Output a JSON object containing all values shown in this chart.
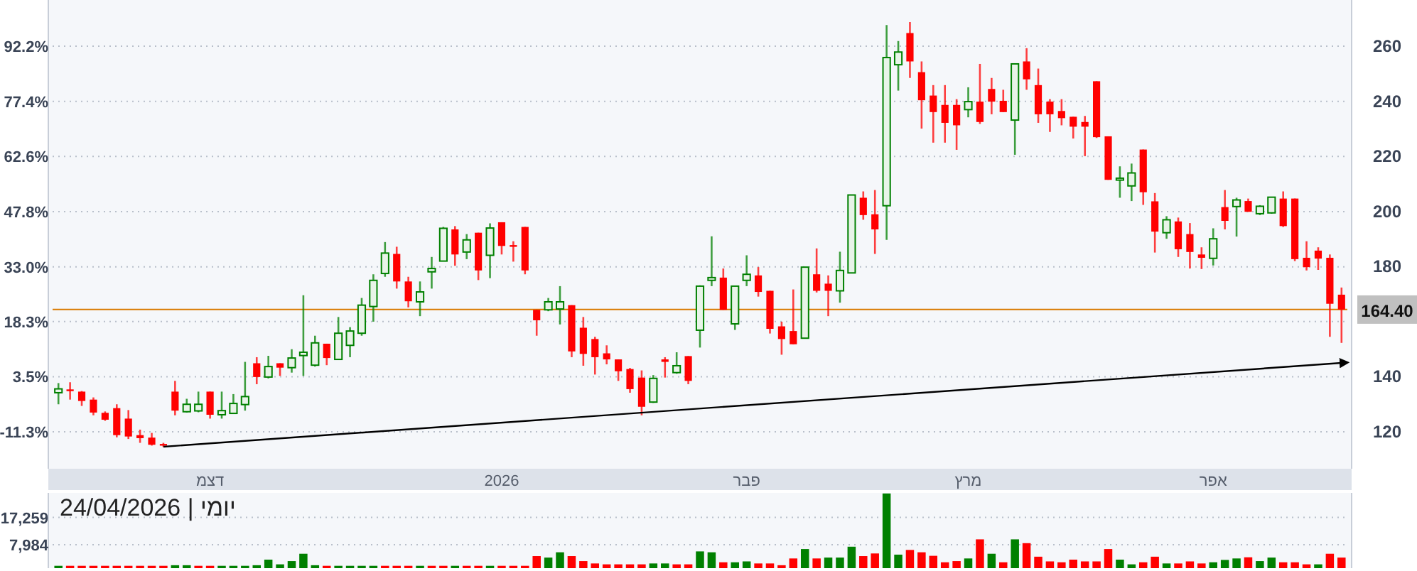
{
  "chart_data": [
    {
      "type": "candlestick",
      "categories": [
        null,
        null,
        null,
        null,
        null,
        null,
        null,
        null,
        null,
        null,
        null,
        null,
        null,
        "דצמ",
        null,
        null,
        null,
        null,
        null,
        null,
        null,
        null,
        null,
        null,
        null,
        null,
        null,
        null,
        null,
        null,
        null,
        null,
        null,
        null,
        null,
        null,
        null,
        null,
        "2026",
        null,
        null,
        null,
        null,
        null,
        null,
        null,
        null,
        null,
        null,
        null,
        null,
        null,
        null,
        null,
        null,
        null,
        null,
        null,
        null,
        "פבר",
        null,
        null,
        null,
        null,
        null,
        null,
        null,
        null,
        null,
        null,
        null,
        null,
        null,
        null,
        null,
        null,
        null,
        null,
        "מרץ",
        null,
        null,
        null,
        null,
        null,
        null,
        null,
        null,
        null,
        null,
        null,
        null,
        null,
        null,
        null,
        null,
        null,
        null,
        null,
        null,
        "אפר",
        null,
        null,
        null,
        null,
        null,
        null,
        null,
        null,
        null,
        null,
        null
      ],
      "series": [
        {
          "type": "candlestick",
          "axis": "y2",
          "ohlc": [
            [
              134.2,
              137.7,
              130.0,
              135.6
            ],
            [
              135.4,
              138.0,
              131.7,
              134.8
            ],
            [
              134.6,
              134.8,
              129.4,
              131.2
            ],
            [
              131.7,
              132.5,
              126.0,
              127.0
            ],
            [
              126.9,
              127.4,
              124.0,
              124.4
            ],
            [
              128.6,
              130.0,
              118.0,
              118.8
            ],
            [
              124.8,
              127.9,
              117.4,
              118.3
            ],
            [
              118.8,
              120.8,
              116.0,
              117.7
            ],
            [
              117.9,
              119.6,
              115.0,
              115.3
            ],
            [
              115.6,
              116.0,
              114.5,
              115.0
            ],
            [
              134.6,
              138.5,
              126.0,
              127.7
            ],
            [
              127.3,
              132.0,
              127.0,
              130.0
            ],
            [
              127.6,
              134.6,
              127.1,
              130.0
            ],
            [
              134.6,
              134.6,
              124.8,
              126.2
            ],
            [
              126.2,
              134.6,
              124.8,
              127.7
            ],
            [
              126.7,
              133.7,
              126.5,
              130.3
            ],
            [
              129.9,
              145.4,
              127.7,
              132.8
            ],
            [
              144.9,
              147.1,
              137.3,
              139.9
            ],
            [
              139.9,
              147.6,
              139.4,
              143.7
            ],
            [
              144.9,
              144.9,
              140.3,
              143.3
            ],
            [
              143.3,
              150.0,
              141.5,
              146.8
            ],
            [
              147.7,
              169.6,
              140.3,
              148.9
            ],
            [
              144.2,
              154.9,
              143.7,
              152.3
            ],
            [
              152.0,
              152.0,
              144.2,
              146.8
            ],
            [
              146.3,
              161.7,
              146.3,
              155.8
            ],
            [
              151.4,
              158.0,
              147.1,
              156.6
            ],
            [
              155.8,
              168.6,
              154.9,
              166.0
            ],
            [
              165.5,
              177.2,
              160.0,
              175.0
            ],
            [
              177.5,
              188.9,
              176.3,
              184.9
            ],
            [
              184.6,
              187.2,
              172.0,
              174.6
            ],
            [
              174.6,
              176.3,
              165.2,
              167.4
            ],
            [
              167.2,
              174.6,
              162.0,
              170.8
            ],
            [
              178.1,
              183.5,
              172.0,
              179.3
            ],
            [
              182.0,
              194.4,
              182.0,
              193.9
            ],
            [
              193.5,
              194.7,
              180.3,
              184.4
            ],
            [
              185.3,
              191.8,
              182.7,
              189.7
            ],
            [
              192.3,
              192.3,
              175.1,
              178.6
            ],
            [
              184.1,
              195.7,
              175.8,
              194.0
            ],
            [
              196.1,
              196.1,
              184.4,
              187.5
            ],
            [
              187.8,
              189.2,
              181.8,
              187.2
            ],
            [
              194.4,
              194.4,
              177.2,
              178.6
            ],
            [
              164.3,
              164.3,
              154.9,
              160.5
            ],
            [
              164.3,
              168.6,
              163.8,
              167.2
            ],
            [
              164.6,
              172.9,
              159.0,
              167.2
            ],
            [
              166.0,
              166.0,
              147.1,
              149.2
            ],
            [
              157.8,
              161.7,
              144.0,
              148.3
            ],
            [
              153.7,
              154.5,
              140.8,
              147.1
            ],
            [
              148.5,
              151.4,
              144.5,
              146.3
            ],
            [
              146.3,
              146.3,
              138.5,
              142.0
            ],
            [
              142.8,
              143.2,
              134.2,
              135.5
            ],
            [
              139.7,
              142.3,
              126.0,
              129.1
            ],
            [
              130.8,
              140.6,
              130.5,
              139.4
            ],
            [
              146.3,
              147.1,
              139.7,
              145.4
            ],
            [
              141.5,
              148.9,
              141.1,
              144.0
            ],
            [
              147.5,
              147.5,
              137.3,
              138.5
            ],
            [
              156.9,
              173.2,
              150.6,
              172.9
            ],
            [
              175.0,
              191.0,
              172.9,
              176.0
            ],
            [
              176.0,
              179.3,
              164.3,
              164.3
            ],
            [
              159.2,
              172.9,
              157.0,
              172.9
            ],
            [
              175.0,
              184.1,
              172.9,
              177.2
            ],
            [
              176.8,
              179.8,
              169.1,
              170.8
            ],
            [
              171.2,
              171.2,
              155.7,
              157.4
            ],
            [
              158.3,
              160.0,
              148.0,
              153.7
            ],
            [
              156.6,
              171.7,
              151.8,
              151.8
            ],
            [
              154.0,
              179.8,
              154.0,
              179.8
            ],
            [
              177.2,
              186.6,
              170.6,
              171.2
            ],
            [
              173.8,
              176.8,
              162.0,
              171.2
            ],
            [
              171.2,
              185.4,
              166.9,
              178.6
            ],
            [
              177.7,
              206.0,
              177.7,
              206.0
            ],
            [
              205.0,
              207.3,
              197.0,
              198.7
            ],
            [
              199.0,
              207.8,
              184.6,
              193.5
            ],
            [
              202.1,
              267.7,
              189.7,
              255.9
            ],
            [
              253.3,
              261.9,
              243.9,
              257.9
            ],
            [
              264.8,
              268.8,
              248.5,
              254.5
            ],
            [
              250.6,
              254.5,
              230.1,
              240.4
            ],
            [
              242.1,
              245.9,
              225.0,
              236.1
            ],
            [
              238.7,
              245.9,
              225.0,
              232.2
            ],
            [
              238.7,
              240.8,
              222.4,
              231.3
            ],
            [
              237.0,
              245.1,
              234.2,
              239.9
            ],
            [
              239.9,
              253.6,
              231.8,
              232.5
            ],
            [
              244.5,
              248.5,
              235.3,
              239.9
            ],
            [
              240.2,
              244.2,
              236.1,
              236.1
            ],
            [
              233.2,
              253.6,
              220.6,
              253.6
            ],
            [
              254.5,
              259.3,
              244.2,
              248.0
            ],
            [
              245.9,
              251.9,
              232.2,
              235.3
            ],
            [
              239.9,
              240.8,
              228.9,
              235.3
            ],
            [
              236.5,
              240.8,
              231.3,
              233.9
            ],
            [
              234.4,
              234.4,
              226.5,
              230.8
            ],
            [
              232.5,
              234.7,
              220.1,
              230.8
            ],
            [
              247.3,
              247.3,
              226.7,
              227.0
            ],
            [
              227.3,
              227.3,
              211.5,
              211.5
            ],
            [
              211.4,
              216.4,
              205.0,
              212.1
            ],
            [
              209.3,
              217.4,
              203.8,
              214.0
            ],
            [
              222.5,
              222.5,
              202.4,
              207.0
            ],
            [
              203.7,
              206.7,
              185.1,
              192.7
            ],
            [
              192.3,
              198.3,
              190.1,
              197.0
            ],
            [
              196.4,
              197.8,
              183.5,
              186.3
            ],
            [
              191.8,
              195.8,
              179.3,
              185.3
            ],
            [
              184.4,
              187.0,
              179.1,
              183.2
            ],
            [
              183.0,
              193.9,
              180.4,
              190.1
            ],
            [
              201.6,
              207.8,
              193.5,
              196.6
            ],
            [
              201.8,
              205.0,
              190.9,
              204.2
            ],
            [
              203.8,
              204.7,
              199.9,
              199.9
            ],
            [
              199.2,
              202.3,
              198.7,
              201.9
            ],
            [
              199.5,
              205.2,
              199.2,
              205.2
            ],
            [
              204.7,
              207.3,
              194.4,
              194.7
            ],
            [
              204.7,
              204.7,
              182.0,
              182.7
            ],
            [
              183.2,
              189.2,
              178.6,
              179.8
            ],
            [
              185.8,
              187.0,
              178.8,
              182.9
            ],
            [
              183.2,
              184.4,
              154.5,
              166.5
            ],
            [
              169.8,
              172.4,
              152.3,
              164.4
            ]
          ]
        },
        {
          "type": "line",
          "axis": "y2",
          "color": "#000000",
          "values": [
            null,
            null,
            null,
            null,
            null,
            null,
            null,
            null,
            null,
            114.6,
            null,
            null,
            null,
            null,
            null,
            null,
            null,
            null,
            null,
            null,
            null,
            null,
            null,
            null,
            null,
            null,
            null,
            null,
            null,
            null,
            null,
            null,
            null,
            null,
            null,
            null,
            null,
            null,
            null,
            null,
            null,
            null,
            null,
            null,
            null,
            null,
            null,
            null,
            null,
            null,
            null,
            null,
            null,
            null,
            null,
            null,
            null,
            null,
            null,
            null,
            null,
            null,
            null,
            null,
            null,
            null,
            null,
            null,
            null,
            null,
            null,
            null,
            null,
            null,
            null,
            null,
            null,
            null,
            null,
            null,
            null,
            null,
            null,
            null,
            null,
            null,
            null,
            null,
            null,
            null,
            null,
            null,
            null,
            null,
            null,
            null,
            null,
            null,
            null,
            null,
            null,
            null,
            null,
            null,
            null,
            null,
            null,
            null,
            null,
            null,
            145.0
          ]
        }
      ],
      "ylim": [
        -21.2,
        104.6
      ],
      "yticks": [
        {
          "value": 92.2,
          "label": "92.2%"
        },
        {
          "value": 77.4,
          "label": "77.4%"
        },
        {
          "value": 62.6,
          "label": "62.6%"
        },
        {
          "value": 47.8,
          "label": "47.8%"
        },
        {
          "value": 33.0,
          "label": "33.0%"
        },
        {
          "value": 18.3,
          "label": "18.3%"
        },
        {
          "value": 3.5,
          "label": "3.5%"
        },
        {
          "value": -11.3,
          "label": "-11.3%"
        }
      ],
      "y2lim": [
        106.6,
        276.8
      ],
      "y2ticks": [
        120,
        140,
        180,
        200,
        220,
        240,
        260
      ],
      "ref_lines": [
        {
          "axis": "y2",
          "value": 164.4,
          "label": "164.40",
          "color": "#d97a00"
        }
      ],
      "grid": "y"
    },
    {
      "type": "bar",
      "title": "יומי | 24/04/2026",
      "categories": [
        null,
        null,
        null,
        null,
        null,
        null,
        null,
        null,
        null,
        null,
        null,
        null,
        null,
        null,
        null,
        null,
        null,
        null,
        null,
        null,
        null,
        null,
        null,
        null,
        null,
        null,
        null,
        null,
        null,
        null,
        null,
        null,
        null,
        null,
        null,
        null,
        null,
        null,
        null,
        null,
        null,
        null,
        null,
        null,
        null,
        null,
        null,
        null,
        null,
        null,
        null,
        null,
        null,
        null,
        null,
        null,
        null,
        null,
        null,
        null,
        null,
        null,
        null,
        null,
        null,
        null,
        null,
        null,
        null,
        null,
        null,
        null,
        null,
        null,
        null,
        null,
        null,
        null,
        null,
        null,
        null,
        null,
        null,
        null,
        null,
        null,
        null,
        null,
        null,
        null,
        null,
        null,
        null,
        null,
        null,
        null,
        null,
        null,
        null,
        null,
        null,
        null,
        null,
        null,
        null,
        null,
        null,
        null,
        null,
        null,
        null
      ],
      "values": [
        800,
        800,
        800,
        800,
        800,
        800,
        800,
        800,
        800,
        800,
        1000,
        1000,
        800,
        800,
        800,
        800,
        800,
        1000,
        2900,
        1300,
        2400,
        4900,
        1000,
        800,
        800,
        800,
        800,
        800,
        800,
        800,
        800,
        800,
        800,
        800,
        800,
        800,
        800,
        800,
        800,
        800,
        800,
        4100,
        3600,
        5400,
        4100,
        2400,
        1600,
        1300,
        1300,
        1300,
        1300,
        1600,
        1600,
        1300,
        1300,
        5700,
        5400,
        2000,
        2000,
        2300,
        1600,
        1600,
        1000,
        3300,
        6500,
        3300,
        3600,
        3600,
        7300,
        4100,
        5000,
        25400,
        4600,
        6200,
        5400,
        4200,
        2000,
        2400,
        3300,
        9800,
        4900,
        2000,
        9800,
        8500,
        3900,
        2300,
        2000,
        2900,
        2300,
        2300,
        6500,
        2900,
        1300,
        2000,
        3900,
        1600,
        1600,
        2300,
        1600,
        2000,
        2800,
        3300,
        3700,
        2400,
        3600,
        2000,
        2000,
        1300,
        1300,
        4900,
        3600
      ],
      "colors": [
        "#008000",
        "#ff0000",
        "#ff0000",
        "#ff0000",
        "#ff0000",
        "#ff0000",
        "#ff0000",
        "#ff0000",
        "#ff0000",
        "#ff0000",
        "#008000",
        "#008000",
        "#ff0000",
        "#ff0000",
        "#008000",
        "#008000",
        "#008000",
        "#008000",
        "#008000",
        "#008000",
        "#008000",
        "#008000",
        "#008000",
        "#ff0000",
        "#008000",
        "#008000",
        "#008000",
        "#008000",
        "#ff0000",
        "#ff0000",
        "#ff0000",
        "#008000",
        "#ff0000",
        "#ff0000",
        "#008000",
        "#ff0000",
        "#ff0000",
        "#008000",
        "#ff0000",
        "#ff0000",
        "#ff0000",
        "#ff0000",
        "#008000",
        "#008000",
        "#ff0000",
        "#ff0000",
        "#ff0000",
        "#ff0000",
        "#ff0000",
        "#ff0000",
        "#ff0000",
        "#008000",
        "#008000",
        "#ff0000",
        "#ff0000",
        "#008000",
        "#008000",
        "#ff0000",
        "#008000",
        "#008000",
        "#ff0000",
        "#ff0000",
        "#ff0000",
        "#ff0000",
        "#008000",
        "#ff0000",
        "#008000",
        "#008000",
        "#008000",
        "#ff0000",
        "#ff0000",
        "#008000",
        "#008000",
        "#ff0000",
        "#ff0000",
        "#ff0000",
        "#ff0000",
        "#ff0000",
        "#008000",
        "#ff0000",
        "#008000",
        "#ff0000",
        "#008000",
        "#ff0000",
        "#ff0000",
        "#ff0000",
        "#ff0000",
        "#ff0000",
        "#ff0000",
        "#ff0000",
        "#ff0000",
        "#008000",
        "#008000",
        "#ff0000",
        "#ff0000",
        "#008000",
        "#ff0000",
        "#ff0000",
        "#ff0000",
        "#008000",
        "#008000",
        "#008000",
        "#ff0000",
        "#008000",
        "#008000",
        "#ff0000",
        "#ff0000",
        "#ff0000",
        "#008000",
        "#ff0000",
        "#ff0000"
      ],
      "ylim": [
        0,
        25600
      ],
      "yticks": [
        {
          "value": 7984,
          "label": "7,984"
        },
        {
          "value": 17259,
          "label": "17,259"
        }
      ],
      "tick_labels": "y",
      "grid": "y"
    }
  ]
}
